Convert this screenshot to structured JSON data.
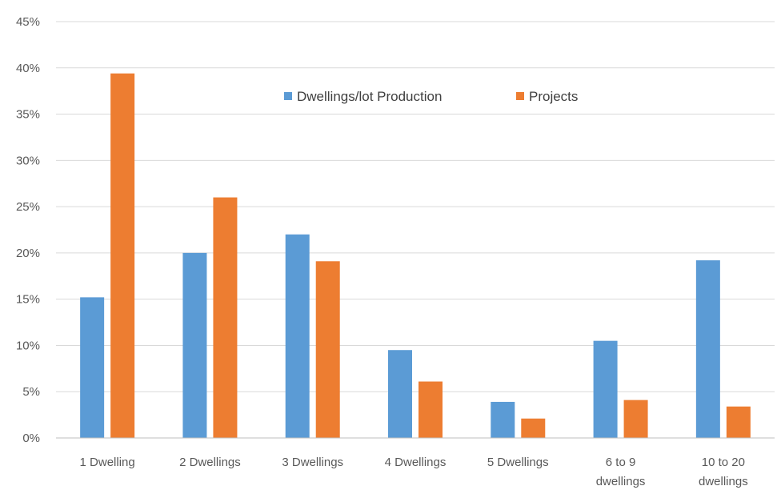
{
  "chart_data": {
    "type": "bar",
    "categories": [
      [
        "1 Dwelling"
      ],
      [
        "2 Dwellings"
      ],
      [
        "3 Dwellings"
      ],
      [
        "4 Dwellings"
      ],
      [
        "5 Dwellings"
      ],
      [
        "6 to 9",
        "dwellings"
      ],
      [
        "10 to 20",
        "dwellings"
      ]
    ],
    "series": [
      {
        "name": "Dwellings/lot Production",
        "color": "#5B9BD5",
        "values": [
          15.2,
          20.0,
          22.0,
          9.5,
          3.9,
          10.5,
          19.2
        ]
      },
      {
        "name": "Projects",
        "color": "#ED7D31",
        "values": [
          39.4,
          26.0,
          19.1,
          6.1,
          2.1,
          4.1,
          3.4
        ]
      }
    ],
    "y_ticks": [
      "0%",
      "5%",
      "10%",
      "15%",
      "20%",
      "25%",
      "30%",
      "35%",
      "40%",
      "45%"
    ],
    "ylim": [
      0,
      45
    ],
    "grid": true,
    "legend_position": "top-center"
  }
}
